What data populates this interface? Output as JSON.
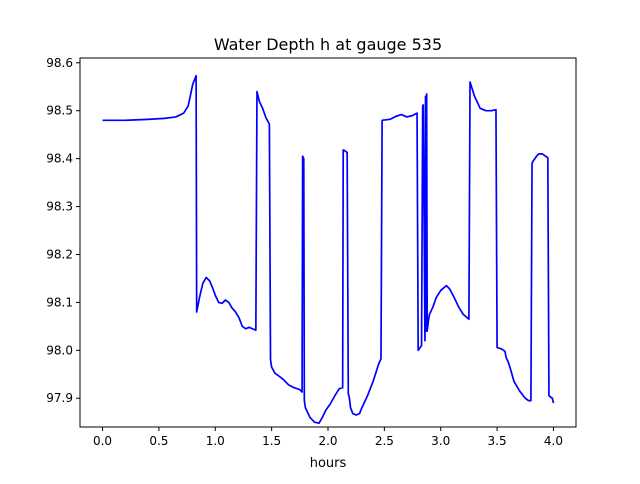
{
  "chart_data": {
    "type": "line",
    "title": "Water Depth h at gauge 535",
    "xlabel": "hours",
    "ylabel": "",
    "xlim": [
      -0.2,
      4.2
    ],
    "ylim": [
      97.84,
      98.61
    ],
    "xticks": [
      0.0,
      0.5,
      1.0,
      1.5,
      2.0,
      2.5,
      3.0,
      3.5,
      4.0
    ],
    "xtick_labels": [
      "0.0",
      "0.5",
      "1.0",
      "1.5",
      "2.0",
      "2.5",
      "3.0",
      "3.5",
      "4.0"
    ],
    "yticks": [
      97.9,
      98.0,
      98.1,
      98.2,
      98.3,
      98.4,
      98.5,
      98.6
    ],
    "ytick_labels": [
      "97.9",
      "98.0",
      "98.1",
      "98.2",
      "98.3",
      "98.4",
      "98.5",
      "98.6"
    ],
    "grid": false,
    "series": [
      {
        "color": "#0000ff",
        "x": [
          0.0,
          0.2,
          0.4,
          0.55,
          0.65,
          0.72,
          0.76,
          0.8,
          0.83,
          0.835,
          0.86,
          0.89,
          0.92,
          0.95,
          0.98,
          1.0,
          1.03,
          1.06,
          1.09,
          1.12,
          1.15,
          1.18,
          1.21,
          1.24,
          1.27,
          1.3,
          1.33,
          1.36,
          1.37,
          1.39,
          1.42,
          1.45,
          1.48,
          1.49,
          1.5,
          1.53,
          1.56,
          1.6,
          1.65,
          1.7,
          1.75,
          1.77,
          1.775,
          1.785,
          1.79,
          1.8,
          1.84,
          1.88,
          1.92,
          1.95,
          1.98,
          2.02,
          2.06,
          2.1,
          2.13,
          2.135,
          2.14,
          2.17,
          2.18,
          2.19,
          2.2,
          2.22,
          2.25,
          2.28,
          2.3,
          2.35,
          2.4,
          2.45,
          2.47,
          2.48,
          2.55,
          2.6,
          2.65,
          2.7,
          2.75,
          2.79,
          2.8,
          2.83,
          2.84,
          2.845,
          2.86,
          2.865,
          2.87,
          2.875,
          2.88,
          2.885,
          2.89,
          2.9,
          2.93,
          2.96,
          3.0,
          3.05,
          3.08,
          3.12,
          3.16,
          3.2,
          3.25,
          3.26,
          3.3,
          3.35,
          3.4,
          3.45,
          3.49,
          3.5,
          3.51,
          3.54,
          3.57,
          3.58,
          3.6,
          3.62,
          3.65,
          3.7,
          3.75,
          3.78,
          3.8,
          3.81,
          3.82,
          3.85,
          3.87,
          3.9,
          3.93,
          3.95,
          3.96,
          3.99,
          4.0
        ],
        "y": [
          98.48,
          98.48,
          98.482,
          98.484,
          98.487,
          98.495,
          98.51,
          98.555,
          98.573,
          98.08,
          98.11,
          98.14,
          98.152,
          98.145,
          98.128,
          98.115,
          98.1,
          98.098,
          98.105,
          98.1,
          98.088,
          98.08,
          98.068,
          98.05,
          98.045,
          98.048,
          98.045,
          98.042,
          98.54,
          98.52,
          98.505,
          98.485,
          98.472,
          97.98,
          97.965,
          97.952,
          97.947,
          97.94,
          97.928,
          97.922,
          97.918,
          97.913,
          98.405,
          98.4,
          97.895,
          97.88,
          97.86,
          97.85,
          97.848,
          97.86,
          97.875,
          97.888,
          97.905,
          97.92,
          97.922,
          98.418,
          98.418,
          98.413,
          97.91,
          97.9,
          97.88,
          97.868,
          97.865,
          97.868,
          97.88,
          97.905,
          97.935,
          97.972,
          97.982,
          98.48,
          98.482,
          98.488,
          98.492,
          98.487,
          98.49,
          98.495,
          98.0,
          98.01,
          98.51,
          98.512,
          98.02,
          98.53,
          98.04,
          98.535,
          98.04,
          98.05,
          98.06,
          98.075,
          98.09,
          98.11,
          98.125,
          98.135,
          98.128,
          98.11,
          98.09,
          98.075,
          98.065,
          98.56,
          98.53,
          98.505,
          98.5,
          98.5,
          98.502,
          98.006,
          98.005,
          98.003,
          97.998,
          97.985,
          97.975,
          97.96,
          97.935,
          97.915,
          97.9,
          97.895,
          97.895,
          98.39,
          98.395,
          98.405,
          98.41,
          98.41,
          98.405,
          98.402,
          97.905,
          97.9,
          97.89
        ]
      }
    ]
  }
}
